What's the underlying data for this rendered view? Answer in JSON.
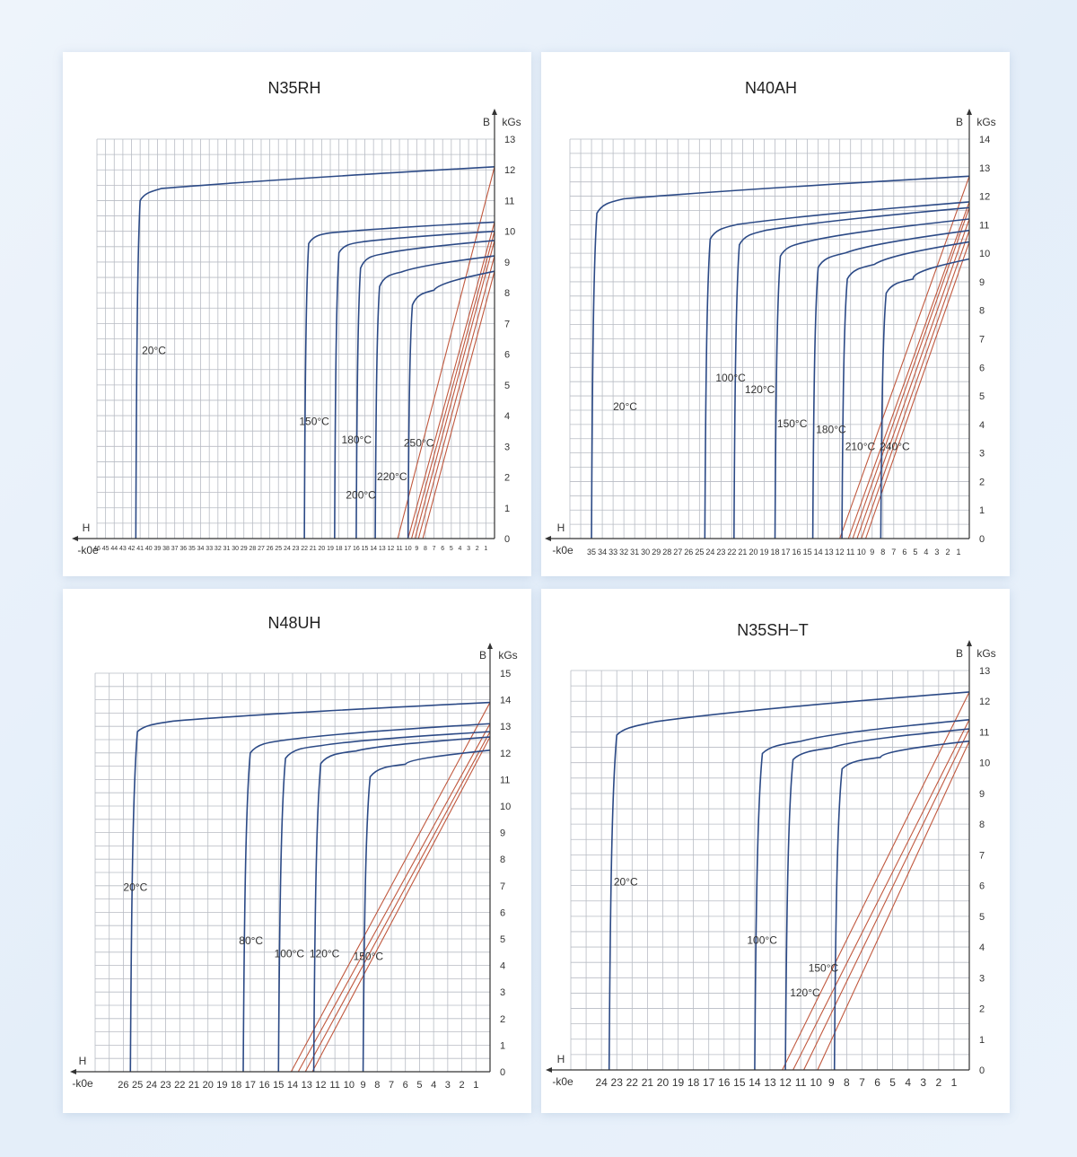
{
  "chart_data": [
    {
      "type": "line",
      "title": "N35RH",
      "ylabel": "B",
      "yunit": "kGs",
      "xlabel": "H",
      "xunit": "-k0e",
      "xlim": [
        46,
        0
      ],
      "ylim": [
        0,
        13
      ],
      "x_ticks": [
        "46",
        "45",
        "44",
        "43",
        "42",
        "41",
        "40",
        "39",
        "38",
        "37",
        "36",
        "35",
        "34",
        "33",
        "32",
        "31",
        "30",
        "29",
        "28",
        "27",
        "26",
        "25",
        "24",
        "23",
        "22",
        "21",
        "20",
        "19",
        "18",
        "17",
        "16",
        "15",
        "14",
        "13",
        "12",
        "11",
        "10",
        "9",
        "8",
        "7",
        "6",
        "5",
        "4",
        "3",
        "2",
        "1"
      ],
      "y_ticks": [
        "0",
        "1",
        "2",
        "3",
        "4",
        "5",
        "6",
        "7",
        "8",
        "9",
        "10",
        "11",
        "12",
        "13"
      ],
      "series": [
        {
          "name": "20°C",
          "type": "demag",
          "knee_h": 41.5,
          "br": 12.1,
          "kb": 11.0,
          "top": 11.3
        },
        {
          "name": "150°C",
          "type": "demag",
          "knee_h": 22.0,
          "br": 10.3,
          "kb": 9.6,
          "top": 9.9
        },
        {
          "name": "180°C",
          "type": "demag",
          "knee_h": 18.5,
          "br": 10.0,
          "kb": 9.3,
          "top": 9.6
        },
        {
          "name": "200°C",
          "type": "demag",
          "knee_h": 16.0,
          "br": 9.7,
          "kb": 8.8,
          "top": 9.2
        },
        {
          "name": "220°C",
          "type": "demag",
          "knee_h": 13.8,
          "br": 9.2,
          "kb": 8.2,
          "top": 8.6
        },
        {
          "name": "250°C",
          "type": "demag",
          "knee_h": 10.0,
          "br": 8.7,
          "kb": 7.6,
          "top": 8.0
        }
      ],
      "load_lines": [
        {
          "h0": 11.2,
          "b1": 12.1
        },
        {
          "h0": 10.0,
          "b1": 10.3
        },
        {
          "h0": 9.6,
          "b1": 10.0
        },
        {
          "h0": 9.2,
          "b1": 9.7
        },
        {
          "h0": 8.8,
          "b1": 9.2
        },
        {
          "h0": 8.3,
          "b1": 8.7
        }
      ],
      "annotations": [
        {
          "text": "20°C",
          "x": 40.8,
          "y": 6.0
        },
        {
          "text": "150°C",
          "x": 22.6,
          "y": 3.7
        },
        {
          "text": "180°C",
          "x": 17.7,
          "y": 3.1
        },
        {
          "text": "200°C",
          "x": 17.2,
          "y": 1.3
        },
        {
          "text": "220°C",
          "x": 13.6,
          "y": 1.9
        },
        {
          "text": "250°C",
          "x": 10.5,
          "y": 3.0
        }
      ]
    },
    {
      "type": "line",
      "title": "N40AH",
      "ylabel": "B",
      "yunit": "kGs",
      "xlabel": "H",
      "xunit": "-k0e",
      "xlim": [
        37,
        0
      ],
      "ylim": [
        0,
        14
      ],
      "x_ticks": [
        "35",
        "34",
        "33",
        "32",
        "31",
        "30",
        "29",
        "28",
        "27",
        "26",
        "25",
        "24",
        "23",
        "22",
        "21",
        "20",
        "19",
        "18",
        "17",
        "16",
        "15",
        "14",
        "13",
        "12",
        "11",
        "10",
        "9",
        "8",
        "7",
        "6",
        "5",
        "4",
        "3",
        "2",
        "1"
      ],
      "y_ticks": [
        "0",
        "1",
        "2",
        "3",
        "4",
        "5",
        "6",
        "7",
        "8",
        "9",
        "10",
        "11",
        "12",
        "13",
        "14"
      ],
      "series": [
        {
          "name": "20°C",
          "type": "demag",
          "knee_h": 35.0,
          "br": 12.7,
          "kb": 11.4,
          "top": 11.8
        },
        {
          "name": "100°C",
          "type": "demag",
          "knee_h": 24.5,
          "br": 11.8,
          "kb": 10.5,
          "top": 10.9
        },
        {
          "name": "120°C",
          "type": "demag",
          "knee_h": 21.8,
          "br": 11.6,
          "kb": 10.3,
          "top": 10.7
        },
        {
          "name": "150°C",
          "type": "demag",
          "knee_h": 18.0,
          "br": 11.2,
          "kb": 9.9,
          "top": 10.3
        },
        {
          "name": "180°C",
          "type": "demag",
          "knee_h": 14.5,
          "br": 10.8,
          "kb": 9.5,
          "top": 9.9
        },
        {
          "name": "210°C",
          "type": "demag",
          "knee_h": 11.8,
          "br": 10.4,
          "kb": 9.1,
          "top": 9.5
        },
        {
          "name": "240°C",
          "type": "demag",
          "knee_h": 8.2,
          "br": 9.8,
          "kb": 8.6,
          "top": 9.0
        }
      ],
      "load_lines": [
        {
          "h0": 12.0,
          "b1": 12.7
        },
        {
          "h0": 11.2,
          "b1": 11.8
        },
        {
          "h0": 10.8,
          "b1": 11.6
        },
        {
          "h0": 10.4,
          "b1": 11.2
        },
        {
          "h0": 10.0,
          "b1": 10.8
        },
        {
          "h0": 9.6,
          "b1": 10.4
        }
      ],
      "annotations": [
        {
          "text": "20°C",
          "x": 33.0,
          "y": 4.5
        },
        {
          "text": "100°C",
          "x": 23.5,
          "y": 5.5
        },
        {
          "text": "120°C",
          "x": 20.8,
          "y": 5.1
        },
        {
          "text": "150°C",
          "x": 17.8,
          "y": 3.9
        },
        {
          "text": "180°C",
          "x": 14.2,
          "y": 3.7
        },
        {
          "text": "210°C",
          "x": 11.5,
          "y": 3.1
        },
        {
          "text": "240°C",
          "x": 8.3,
          "y": 3.1
        }
      ]
    },
    {
      "type": "line",
      "title": "N48UH",
      "ylabel": "B",
      "yunit": "kGs",
      "xlabel": "H",
      "xunit": "-k0e",
      "xlim": [
        28,
        0
      ],
      "ylim": [
        0,
        15
      ],
      "x_ticks": [
        "26",
        "25",
        "24",
        "23",
        "22",
        "21",
        "20",
        "19",
        "18",
        "17",
        "16",
        "15",
        "14",
        "13",
        "12",
        "11",
        "10",
        "9",
        "8",
        "7",
        "6",
        "5",
        "4",
        "3",
        "2",
        "1"
      ],
      "y_ticks": [
        "0",
        "1",
        "2",
        "3",
        "4",
        "5",
        "6",
        "7",
        "8",
        "9",
        "10",
        "11",
        "12",
        "13",
        "14",
        "15"
      ],
      "series": [
        {
          "name": "20°C",
          "type": "demag",
          "knee_h": 25.5,
          "br": 13.9,
          "kb": 12.8,
          "top": 13.1
        },
        {
          "name": "80°C",
          "type": "demag",
          "knee_h": 17.5,
          "br": 13.1,
          "kb": 12.0,
          "top": 12.4
        },
        {
          "name": "100°C",
          "type": "demag",
          "knee_h": 15.0,
          "br": 12.8,
          "kb": 11.8,
          "top": 12.2
        },
        {
          "name": "120°C",
          "type": "demag",
          "knee_h": 12.5,
          "br": 12.6,
          "kb": 11.6,
          "top": 12.0
        },
        {
          "name": "150°C",
          "type": "demag",
          "knee_h": 9.0,
          "br": 12.1,
          "kb": 11.1,
          "top": 11.5
        }
      ],
      "load_lines": [
        {
          "h0": 14.1,
          "b1": 13.9
        },
        {
          "h0": 13.6,
          "b1": 13.1
        },
        {
          "h0": 13.1,
          "b1": 12.8
        },
        {
          "h0": 12.6,
          "b1": 12.6
        }
      ],
      "annotations": [
        {
          "text": "20°C",
          "x": 26.0,
          "y": 6.8
        },
        {
          "text": "80°C",
          "x": 17.8,
          "y": 4.8
        },
        {
          "text": "100°C",
          "x": 15.3,
          "y": 4.3
        },
        {
          "text": "120°C",
          "x": 12.8,
          "y": 4.3
        },
        {
          "text": "150°C",
          "x": 9.7,
          "y": 4.2
        }
      ]
    },
    {
      "type": "line",
      "title": "N35SH−T",
      "ylabel": "B",
      "yunit": "kGs",
      "xlabel": "H",
      "xunit": "-k0e",
      "xlim": [
        26,
        0
      ],
      "ylim": [
        0,
        13
      ],
      "x_ticks": [
        "24",
        "23",
        "22",
        "21",
        "20",
        "19",
        "18",
        "17",
        "16",
        "15",
        "14",
        "13",
        "12",
        "11",
        "10",
        "9",
        "8",
        "7",
        "6",
        "5",
        "4",
        "3",
        "2",
        "1"
      ],
      "y_ticks": [
        "0",
        "1",
        "2",
        "3",
        "4",
        "5",
        "6",
        "7",
        "8",
        "9",
        "10",
        "11",
        "12",
        "13"
      ],
      "series": [
        {
          "name": "20°C",
          "type": "demag",
          "knee_h": 23.5,
          "br": 12.3,
          "kb": 10.9,
          "top": 11.2
        },
        {
          "name": "100°C",
          "type": "demag",
          "knee_h": 14.0,
          "br": 11.4,
          "kb": 10.3,
          "top": 10.6
        },
        {
          "name": "120°C",
          "type": "demag",
          "knee_h": 12.0,
          "br": 11.1,
          "kb": 10.1,
          "top": 10.4
        },
        {
          "name": "150°C",
          "type": "demag",
          "knee_h": 8.8,
          "br": 10.7,
          "kb": 9.8,
          "top": 10.1
        }
      ],
      "load_lines": [
        {
          "h0": 12.2,
          "b1": 12.3
        },
        {
          "h0": 11.5,
          "b1": 11.4
        },
        {
          "h0": 10.8,
          "b1": 11.1
        },
        {
          "h0": 9.9,
          "b1": 10.7
        }
      ],
      "annotations": [
        {
          "text": "20°C",
          "x": 23.2,
          "y": 6.0
        },
        {
          "text": "100°C",
          "x": 14.5,
          "y": 4.1
        },
        {
          "text": "120°C",
          "x": 11.7,
          "y": 2.4
        },
        {
          "text": "150°C",
          "x": 10.5,
          "y": 3.2
        }
      ]
    }
  ],
  "colors": {
    "demag_curve": "#2c4a86",
    "load_line": "#c0583e",
    "grid": "#b8bcc4",
    "axis": "#333333"
  }
}
